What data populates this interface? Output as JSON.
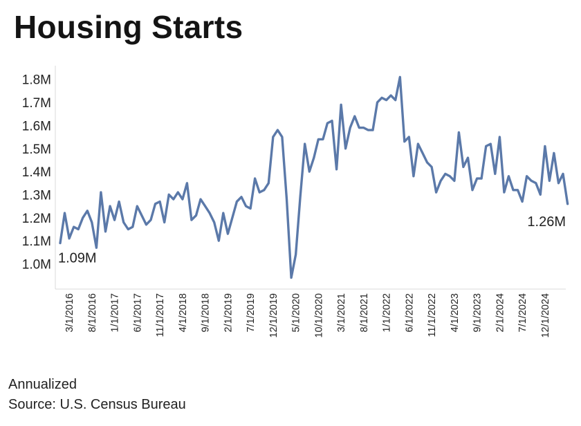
{
  "title": "Housing Starts",
  "footnote_1": "Annualized",
  "footnote_2": "Source: U.S. Census Bureau",
  "colors": {
    "line": "#5b79a9",
    "axis": "#d9d9d9",
    "text": "#222222"
  },
  "chart_data": {
    "type": "line",
    "title": "Housing Starts",
    "xlabel": "",
    "ylabel": "",
    "ylim": [
      0.9,
      1.83
    ],
    "y_ticks": [
      "1.0M",
      "1.1M",
      "1.2M",
      "1.3M",
      "1.4M",
      "1.5M",
      "1.6M",
      "1.7M",
      "1.8M"
    ],
    "y_tick_values": [
      1.0,
      1.1,
      1.2,
      1.3,
      1.4,
      1.5,
      1.6,
      1.7,
      1.8
    ],
    "x_tick_labels": [
      "3/1/2016",
      "8/1/2016",
      "1/1/2017",
      "6/1/2017",
      "11/1/2017",
      "4/1/2018",
      "9/1/2018",
      "2/1/2019",
      "7/1/2019",
      "12/1/2019",
      "5/1/2020",
      "10/1/2020",
      "3/1/2021",
      "8/1/2021",
      "1/1/2022",
      "6/1/2022",
      "11/1/2022",
      "4/1/2023",
      "9/1/2023",
      "2/1/2024",
      "7/1/2024",
      "12/1/2024"
    ],
    "grid": false,
    "legend": "none",
    "series": [
      {
        "x_start": "2016-01",
        "frequency": "monthly",
        "values": [
          1.09,
          1.22,
          1.11,
          1.16,
          1.15,
          1.2,
          1.23,
          1.18,
          1.07,
          1.31,
          1.14,
          1.25,
          1.19,
          1.27,
          1.18,
          1.15,
          1.16,
          1.25,
          1.21,
          1.17,
          1.19,
          1.26,
          1.27,
          1.18,
          1.3,
          1.28,
          1.31,
          1.28,
          1.35,
          1.19,
          1.21,
          1.28,
          1.25,
          1.22,
          1.18,
          1.1,
          1.22,
          1.13,
          1.2,
          1.27,
          1.29,
          1.25,
          1.24,
          1.37,
          1.31,
          1.32,
          1.35,
          1.55,
          1.58,
          1.55,
          1.28,
          0.94,
          1.04,
          1.29,
          1.52,
          1.4,
          1.46,
          1.54,
          1.54,
          1.61,
          1.62,
          1.41,
          1.69,
          1.5,
          1.59,
          1.64,
          1.59,
          1.59,
          1.58,
          1.58,
          1.7,
          1.72,
          1.71,
          1.73,
          1.71,
          1.81,
          1.53,
          1.55,
          1.38,
          1.52,
          1.48,
          1.44,
          1.42,
          1.31,
          1.36,
          1.39,
          1.38,
          1.36,
          1.57,
          1.42,
          1.46,
          1.32,
          1.37,
          1.37,
          1.51,
          1.52,
          1.39,
          1.55,
          1.31,
          1.38,
          1.32,
          1.32,
          1.27,
          1.38,
          1.36,
          1.35,
          1.3,
          1.51,
          1.36,
          1.48,
          1.35,
          1.39,
          1.26
        ]
      }
    ],
    "annotations": [
      {
        "text": "1.09M",
        "x": "2016-01",
        "y": 1.09
      },
      {
        "text": "1.26M",
        "x": "2025-05",
        "y": 1.26
      }
    ]
  }
}
